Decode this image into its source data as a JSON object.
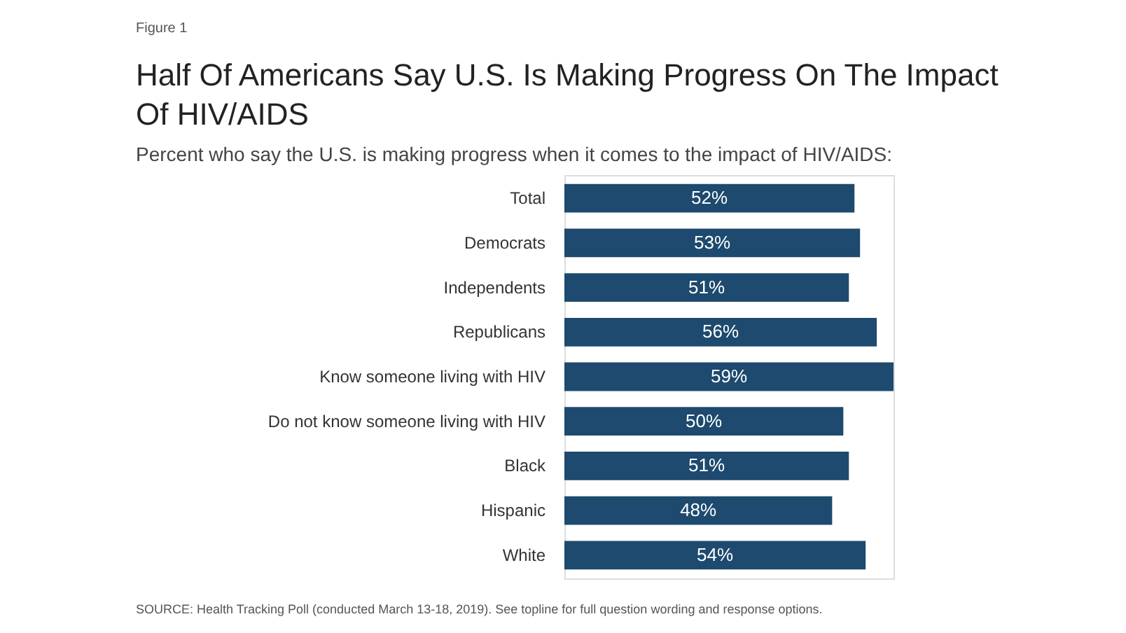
{
  "chart_data": {
    "type": "bar",
    "orientation": "horizontal",
    "title": "Half Of Americans Say U.S. Is Making Progress On The Impact Of HIV/AIDS",
    "subtitle": "Percent who say the U.S. is making progress when it comes to the impact of HIV/AIDS:",
    "categories": [
      "Total",
      "Democrats",
      "Independents",
      "Republicans",
      "Know someone living with HIV",
      "Do not know someone living with HIV",
      "Black",
      "Hispanic",
      "White"
    ],
    "values": [
      52,
      53,
      51,
      56,
      59,
      50,
      51,
      48,
      54
    ],
    "value_labels": [
      "52%",
      "53%",
      "51%",
      "56%",
      "59%",
      "50%",
      "51%",
      "48%",
      "54%"
    ],
    "color": "#1d4a6e",
    "annotations": [
      "Figure 1",
      "SOURCE: Health Tracking Poll (conducted March 13-18, 2019). See topline for full question wording and response options."
    ]
  }
}
